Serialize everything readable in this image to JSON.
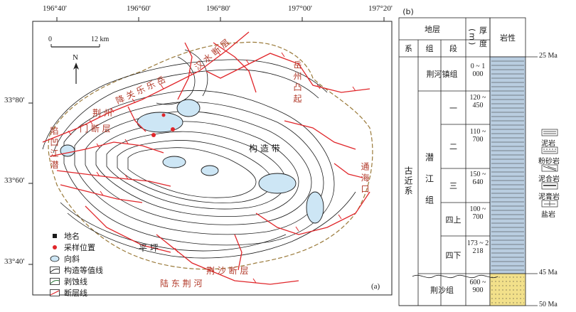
{
  "map": {
    "top_coords": [
      "196°40'",
      "196°60'",
      "196°80'",
      "197°00'",
      "197°20'"
    ],
    "left_coords": [
      "33°80'",
      "33°60'",
      "33°40'"
    ],
    "scale_start": "0",
    "scale_end": "12 km",
    "north": "N",
    "panel_label": "(a)",
    "place_labels": {
      "qianjiang_east_trough": "陷 凹 江 潜",
      "yuezhou_uplift": "岳 州 凸 起",
      "yuelu": "降 关 乐 乐 岳",
      "jingmen_fault": "门 断 层",
      "jingzhou": "荆 州",
      "jingsha_fault": "荆 沙 断 层",
      "hanshui_fault": "汉 水 断 层",
      "pingshan": "平 坪",
      "tonghai": "通 海 口",
      "ludou": "陆 东 荆 河",
      "central": "构 造 带"
    },
    "legend": [
      {
        "label": "地名",
        "icon": "square-marker"
      },
      {
        "label": "采样位置",
        "icon": "red-dot"
      },
      {
        "label": "向斜",
        "icon": "blue-syncline"
      },
      {
        "label": "构造等值线",
        "icon": "contour-line"
      },
      {
        "label": "剥蚀线",
        "icon": "erosion-line"
      },
      {
        "label": "断层线",
        "icon": "red-fault"
      }
    ],
    "colors": {
      "fault": "#e0262a",
      "syncline": "#cde6f5",
      "contour": "#1a1a1a",
      "erosion": "#9a7a3a"
    }
  },
  "strat": {
    "panel_label": "(b)",
    "header_group": "地层",
    "header_sys": "系",
    "header_group2": "组",
    "header_seg": "段",
    "header_thick": "厚 度 (m)",
    "header_lith": "岩性",
    "system": "古近系",
    "groups": {
      "jinghezhen": "荆河镇组",
      "qianjiang": "潜江组",
      "jingsha": "荆沙组"
    },
    "segments": [
      "一",
      "二",
      "三",
      "四上",
      "四下"
    ],
    "thickness": [
      "0 ~ 1 000",
      "120 ~ 450",
      "110 ~ 700",
      "150 ~ 640",
      "100 ~ 700",
      "173 ~ 2 218",
      "600 ~ 900"
    ],
    "ages": [
      "25 Ma",
      "45 Ma",
      "50 Ma"
    ],
    "lith_legend": [
      {
        "label": "泥岩"
      },
      {
        "label": "粉砂岩"
      },
      {
        "label": "泥合岩"
      },
      {
        "label": "泥膏岩"
      },
      {
        "label": "盐岩"
      }
    ]
  }
}
